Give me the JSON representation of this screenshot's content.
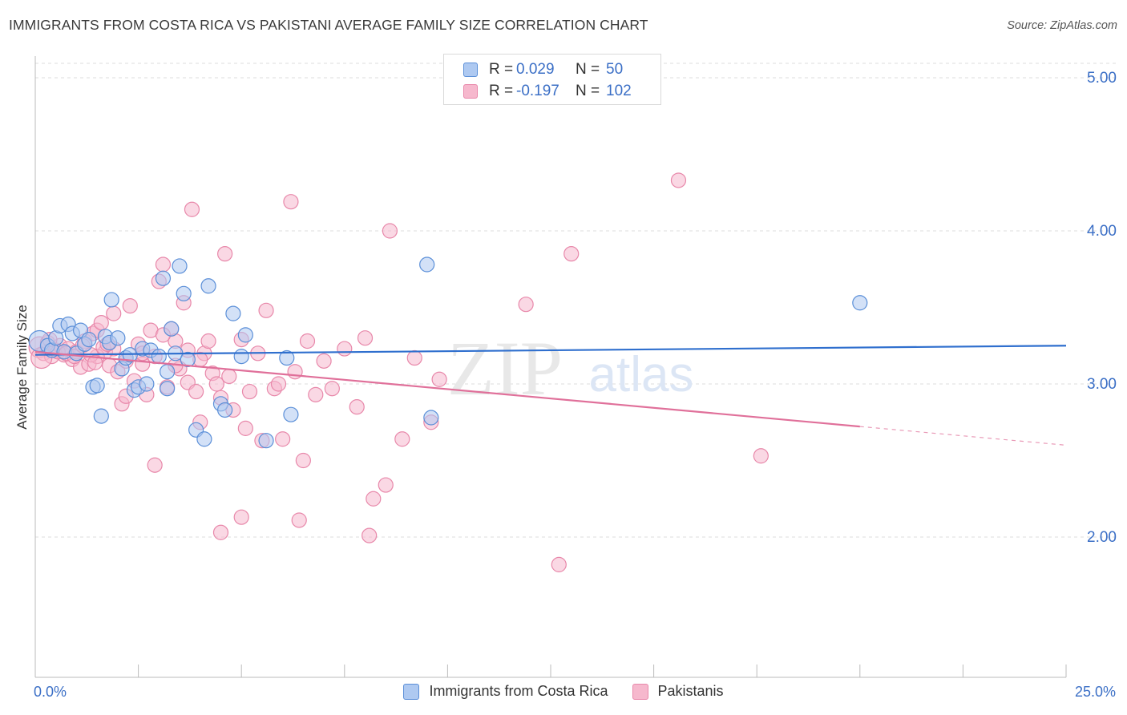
{
  "title": "IMMIGRANTS FROM COSTA RICA VS PAKISTANI AVERAGE FAMILY SIZE CORRELATION CHART",
  "source": "Source: ZipAtlas.com",
  "watermark": {
    "zip": "ZIP",
    "atlas": "atlas"
  },
  "legend": {
    "r_label": "R =",
    "n_label": "N =",
    "series1": {
      "r": "0.029",
      "n": "50"
    },
    "series2": {
      "r": "-0.197",
      "n": "102"
    }
  },
  "bottom_legend": {
    "series1": "Immigrants from Costa Rica",
    "series2": "Pakistanis"
  },
  "colors": {
    "blue_fill": "#aec9f1",
    "blue_stroke": "#5b8fd8",
    "blue_line": "#2f6fce",
    "pink_fill": "#f6b8cd",
    "pink_stroke": "#e888aa",
    "pink_line": "#e0709a",
    "axis_text": "#3b6fc6",
    "grid": "#dddddd"
  },
  "chart_data": {
    "type": "scatter",
    "xlabel": "",
    "ylabel": "Average Family Size",
    "xlim": [
      0,
      25
    ],
    "ylim": [
      1.2,
      5.1
    ],
    "x_tick_labels": [
      "0.0%",
      "25.0%"
    ],
    "y_ticks": [
      2.0,
      3.0,
      4.0,
      5.0
    ],
    "y_tick_labels": [
      "2.00",
      "3.00",
      "4.00",
      "5.00"
    ],
    "grid": true,
    "series": [
      {
        "name": "Immigrants from Costa Rica",
        "r": 0.029,
        "n": 50,
        "trend": {
          "x0": 0,
          "y0": 3.19,
          "x1": 25,
          "y1": 3.25,
          "dashed_from": null
        },
        "points": [
          [
            0.1,
            3.28
          ],
          [
            0.3,
            3.25
          ],
          [
            0.4,
            3.22
          ],
          [
            0.5,
            3.3
          ],
          [
            0.6,
            3.38
          ],
          [
            0.7,
            3.21
          ],
          [
            0.8,
            3.39
          ],
          [
            0.9,
            3.33
          ],
          [
            1.0,
            3.2
          ],
          [
            1.1,
            3.35
          ],
          [
            1.2,
            3.26
          ],
          [
            1.3,
            3.29
          ],
          [
            1.4,
            2.98
          ],
          [
            1.5,
            2.99
          ],
          [
            1.6,
            2.79
          ],
          [
            1.7,
            3.31
          ],
          [
            1.8,
            3.27
          ],
          [
            1.85,
            3.55
          ],
          [
            2.0,
            3.3
          ],
          [
            2.1,
            3.1
          ],
          [
            2.2,
            3.17
          ],
          [
            2.3,
            3.19
          ],
          [
            2.4,
            2.96
          ],
          [
            2.5,
            2.98
          ],
          [
            2.6,
            3.23
          ],
          [
            2.7,
            3.0
          ],
          [
            2.8,
            3.22
          ],
          [
            3.0,
            3.18
          ],
          [
            3.1,
            3.69
          ],
          [
            3.2,
            3.08
          ],
          [
            3.3,
            3.36
          ],
          [
            3.4,
            3.2
          ],
          [
            3.5,
            3.77
          ],
          [
            3.6,
            3.59
          ],
          [
            3.7,
            3.16
          ],
          [
            3.2,
            2.97
          ],
          [
            3.9,
            2.7
          ],
          [
            4.1,
            2.64
          ],
          [
            4.2,
            3.64
          ],
          [
            4.5,
            2.87
          ],
          [
            4.6,
            2.83
          ],
          [
            4.8,
            3.46
          ],
          [
            5.0,
            3.18
          ],
          [
            5.1,
            3.32
          ],
          [
            5.6,
            2.63
          ],
          [
            6.1,
            3.17
          ],
          [
            6.2,
            2.8
          ],
          [
            9.5,
            3.78
          ],
          [
            9.6,
            2.78
          ],
          [
            20.0,
            3.53
          ]
        ]
      },
      {
        "name": "Pakistanis",
        "r": -0.197,
        "n": 102,
        "trend": {
          "x0": 0,
          "y0": 3.21,
          "x1": 25,
          "y1": 2.6,
          "dashed_from": 20.0
        },
        "points": [
          [
            0.1,
            3.24
          ],
          [
            0.2,
            3.2
          ],
          [
            0.3,
            3.27
          ],
          [
            0.4,
            3.18
          ],
          [
            0.5,
            3.22
          ],
          [
            0.6,
            3.25
          ],
          [
            0.7,
            3.19
          ],
          [
            0.8,
            3.23
          ],
          [
            0.9,
            3.16
          ],
          [
            1.0,
            3.21
          ],
          [
            1.1,
            3.11
          ],
          [
            1.2,
            3.28
          ],
          [
            1.3,
            3.13
          ],
          [
            1.4,
            3.33
          ],
          [
            1.5,
            3.35
          ],
          [
            1.6,
            3.4
          ],
          [
            1.7,
            3.21
          ],
          [
            1.8,
            3.12
          ],
          [
            1.9,
            3.46
          ],
          [
            2.0,
            3.08
          ],
          [
            2.1,
            2.87
          ],
          [
            2.2,
            2.92
          ],
          [
            2.3,
            3.51
          ],
          [
            2.4,
            3.02
          ],
          [
            2.5,
            3.26
          ],
          [
            2.6,
            3.13
          ],
          [
            2.7,
            2.93
          ],
          [
            2.8,
            3.35
          ],
          [
            2.9,
            3.18
          ],
          [
            3.0,
            3.67
          ],
          [
            3.1,
            3.78
          ],
          [
            3.2,
            2.98
          ],
          [
            3.3,
            3.36
          ],
          [
            3.4,
            3.28
          ],
          [
            3.5,
            3.1
          ],
          [
            3.6,
            3.53
          ],
          [
            3.7,
            3.01
          ],
          [
            3.8,
            4.14
          ],
          [
            3.9,
            2.95
          ],
          [
            4.0,
            2.75
          ],
          [
            4.1,
            3.2
          ],
          [
            4.2,
            3.28
          ],
          [
            4.3,
            3.07
          ],
          [
            4.4,
            3.0
          ],
          [
            4.5,
            2.91
          ],
          [
            4.6,
            3.85
          ],
          [
            4.7,
            3.05
          ],
          [
            4.8,
            2.83
          ],
          [
            5.0,
            3.29
          ],
          [
            5.1,
            2.71
          ],
          [
            5.2,
            2.95
          ],
          [
            5.4,
            3.2
          ],
          [
            5.6,
            3.48
          ],
          [
            5.8,
            2.97
          ],
          [
            5.9,
            3.0
          ],
          [
            6.0,
            2.64
          ],
          [
            6.2,
            4.19
          ],
          [
            6.3,
            3.08
          ],
          [
            6.5,
            2.5
          ],
          [
            6.6,
            3.28
          ],
          [
            6.8,
            2.93
          ],
          [
            7.0,
            3.15
          ],
          [
            7.2,
            2.97
          ],
          [
            7.5,
            3.23
          ],
          [
            7.8,
            2.85
          ],
          [
            8.0,
            3.3
          ],
          [
            8.2,
            2.25
          ],
          [
            8.5,
            2.34
          ],
          [
            8.6,
            4.0
          ],
          [
            8.9,
            2.64
          ],
          [
            9.2,
            3.17
          ],
          [
            9.6,
            2.75
          ],
          [
            9.8,
            3.03
          ],
          [
            11.9,
            3.52
          ],
          [
            12.7,
            1.82
          ],
          [
            13.0,
            3.85
          ],
          [
            15.6,
            4.33
          ],
          [
            17.6,
            2.53
          ],
          [
            2.9,
            2.47
          ],
          [
            4.5,
            2.03
          ],
          [
            5.0,
            2.13
          ],
          [
            6.4,
            2.11
          ],
          [
            8.1,
            2.01
          ],
          [
            5.5,
            2.63
          ],
          [
            1.5,
            3.18
          ],
          [
            1.9,
            3.23
          ],
          [
            2.2,
            3.15
          ],
          [
            2.6,
            3.2
          ],
          [
            3.1,
            3.32
          ],
          [
            3.4,
            3.12
          ],
          [
            3.7,
            3.22
          ],
          [
            4.0,
            3.16
          ],
          [
            0.15,
            3.17
          ],
          [
            0.35,
            3.29
          ],
          [
            0.55,
            3.21
          ],
          [
            0.75,
            3.2
          ],
          [
            0.95,
            3.18
          ],
          [
            1.15,
            3.25
          ],
          [
            1.35,
            3.19
          ],
          [
            1.45,
            3.14
          ],
          [
            1.65,
            3.24
          ],
          [
            1.75,
            3.26
          ]
        ]
      }
    ]
  }
}
